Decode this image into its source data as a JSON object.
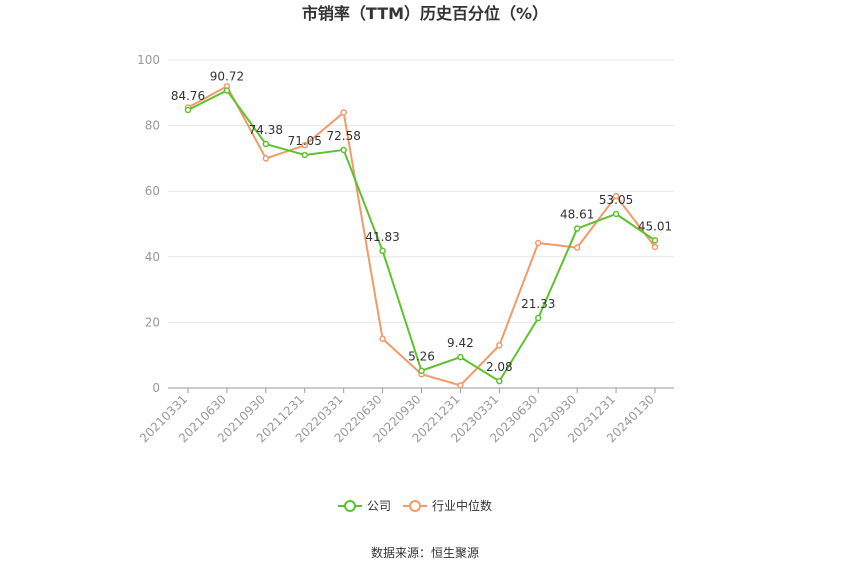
{
  "chart_data": {
    "type": "line",
    "title": "市销率（TTM）历史百分位（%）",
    "xlabel": "",
    "ylabel": "",
    "ylim": [
      0,
      100
    ],
    "yticks": [
      0,
      20,
      40,
      60,
      80,
      100
    ],
    "grid": true,
    "legend_position": "bottom-center",
    "categories": [
      "20210331",
      "20210630",
      "20210930",
      "20211231",
      "20220331",
      "20220630",
      "20220930",
      "20221231",
      "20230331",
      "20230630",
      "20230930",
      "20231231",
      "20240130"
    ],
    "series": [
      {
        "name": "公司",
        "color": "#5cc22e",
        "show_labels": true,
        "values": [
          84.76,
          90.72,
          74.38,
          71.05,
          72.58,
          41.83,
          5.26,
          9.42,
          2.08,
          21.33,
          48.61,
          53.05,
          45.01
        ]
      },
      {
        "name": "行业中位数",
        "color": "#f39a6b",
        "show_labels": false,
        "values": [
          85.5,
          92.0,
          70.0,
          74.0,
          84.0,
          15.0,
          4.2,
          0.8,
          13.0,
          44.2,
          42.8,
          58.5,
          43.0
        ]
      }
    ]
  },
  "source": "数据来源：恒生聚源"
}
